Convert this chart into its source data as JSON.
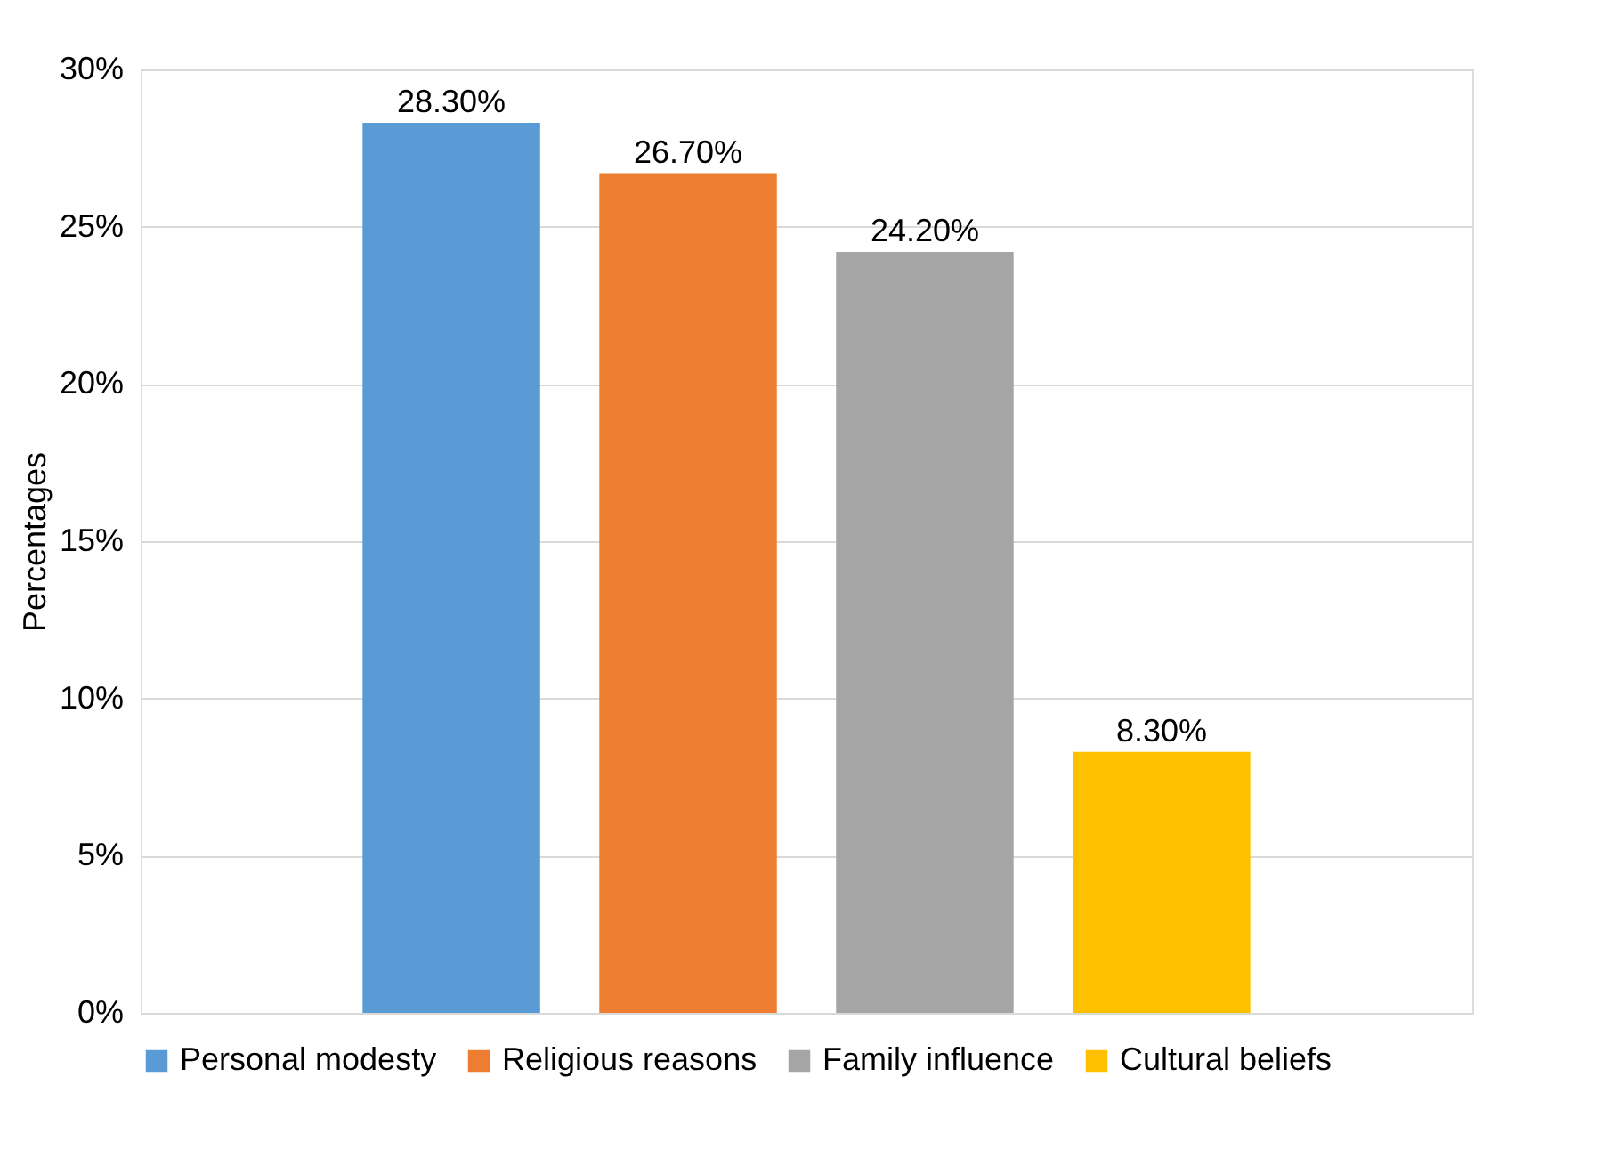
{
  "chart_data": {
    "type": "bar",
    "ylabel": "Percentages",
    "categories": [
      null
    ],
    "series": [
      {
        "name": "Personal modesty",
        "color": "#5b9bd5",
        "values": [
          28.3
        ],
        "value_labels": [
          "28.30%"
        ]
      },
      {
        "name": "Religious reasons",
        "color": "#ed7d31",
        "values": [
          26.7
        ],
        "value_labels": [
          "26.70%"
        ]
      },
      {
        "name": "Family influence",
        "color": "#a5a5a5",
        "values": [
          24.2
        ],
        "value_labels": [
          "24.20%"
        ]
      },
      {
        "name": "Cultural beliefs",
        "color": "#ffc000",
        "values": [
          8.3
        ],
        "value_labels": [
          "8.30%"
        ]
      }
    ],
    "ylim": [
      0,
      30
    ],
    "yticks": [
      {
        "value": 0,
        "label": "0%"
      },
      {
        "value": 5,
        "label": "5%"
      },
      {
        "value": 10,
        "label": "10%"
      },
      {
        "value": 15,
        "label": "15%"
      },
      {
        "value": 20,
        "label": "20%"
      },
      {
        "value": 25,
        "label": "25%"
      },
      {
        "value": 30,
        "label": "30%"
      }
    ],
    "grid": "y",
    "legend": "bottom"
  }
}
